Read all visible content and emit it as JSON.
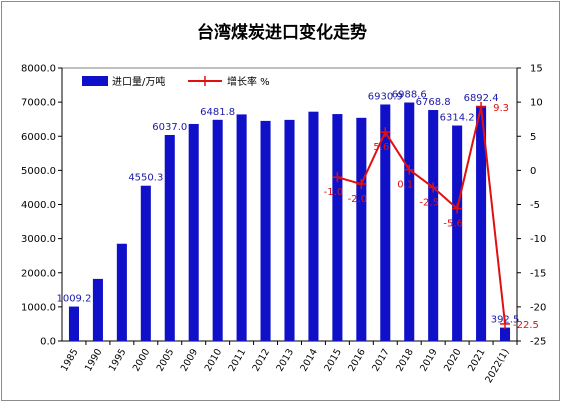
{
  "chart_data": {
    "type": "bar+line",
    "title": "台湾煤炭进口变化走势",
    "categories": [
      "1985",
      "1990",
      "1995",
      "2000",
      "2005",
      "2009",
      "2010",
      "2011",
      "2012",
      "2013",
      "2014",
      "2015",
      "2016",
      "2017",
      "2018",
      "2019",
      "2020",
      "2021",
      "2022(1)"
    ],
    "series": [
      {
        "name": "进口量/万吨",
        "kind": "bar",
        "axis": "left",
        "color": "#1010c8",
        "values": [
          1009.2,
          1820,
          2850,
          4550.3,
          6037.0,
          6360,
          6481.8,
          6640,
          6450,
          6480,
          6720,
          6650,
          6540,
          6930.9,
          6988.6,
          6768.8,
          6314.2,
          6892.4,
          392.5
        ],
        "labels": [
          "1009.2",
          "",
          "",
          "4550.3",
          "6037.0",
          "",
          "6481.8",
          "",
          "",
          "",
          "",
          "",
          "",
          "6930.9",
          "6988.6",
          "6768.8",
          "6314.2",
          "6892.4",
          "392.5"
        ]
      },
      {
        "name": "增长率 %",
        "kind": "line",
        "axis": "right",
        "color": "#e01010",
        "points": [
          {
            "x": "2015",
            "y": -1.0,
            "label": "-1.0"
          },
          {
            "x": "2016",
            "y": -2.0,
            "label": "-2.0"
          },
          {
            "x": "2017",
            "y": 5.6,
            "label": "5.6"
          },
          {
            "x": "2018",
            "y": 0.1,
            "label": "0.1"
          },
          {
            "x": "2019",
            "y": -2.5,
            "label": "-2.5"
          },
          {
            "x": "2020",
            "y": -5.6,
            "label": "-5.6"
          },
          {
            "x": "2021",
            "y": 9.3,
            "label": "9.3"
          },
          {
            "x": "2022(1)",
            "y": -22.5,
            "label": "-22.5"
          }
        ]
      }
    ],
    "y_left": {
      "min": 0,
      "max": 8000,
      "step": 1000,
      "ticks": [
        "0.0",
        "1000.0",
        "2000.0",
        "3000.0",
        "4000.0",
        "5000.0",
        "6000.0",
        "7000.0",
        "8000.0"
      ]
    },
    "y_right": {
      "min": -25,
      "max": 15,
      "step": 5,
      "ticks": [
        "-25",
        "-20",
        "-15",
        "-10",
        "-5",
        "0",
        "5",
        "10",
        "15"
      ]
    },
    "legend": {
      "position": "top-left",
      "entries": [
        "进口量/万吨",
        "增长率 %"
      ]
    },
    "grid": false
  }
}
